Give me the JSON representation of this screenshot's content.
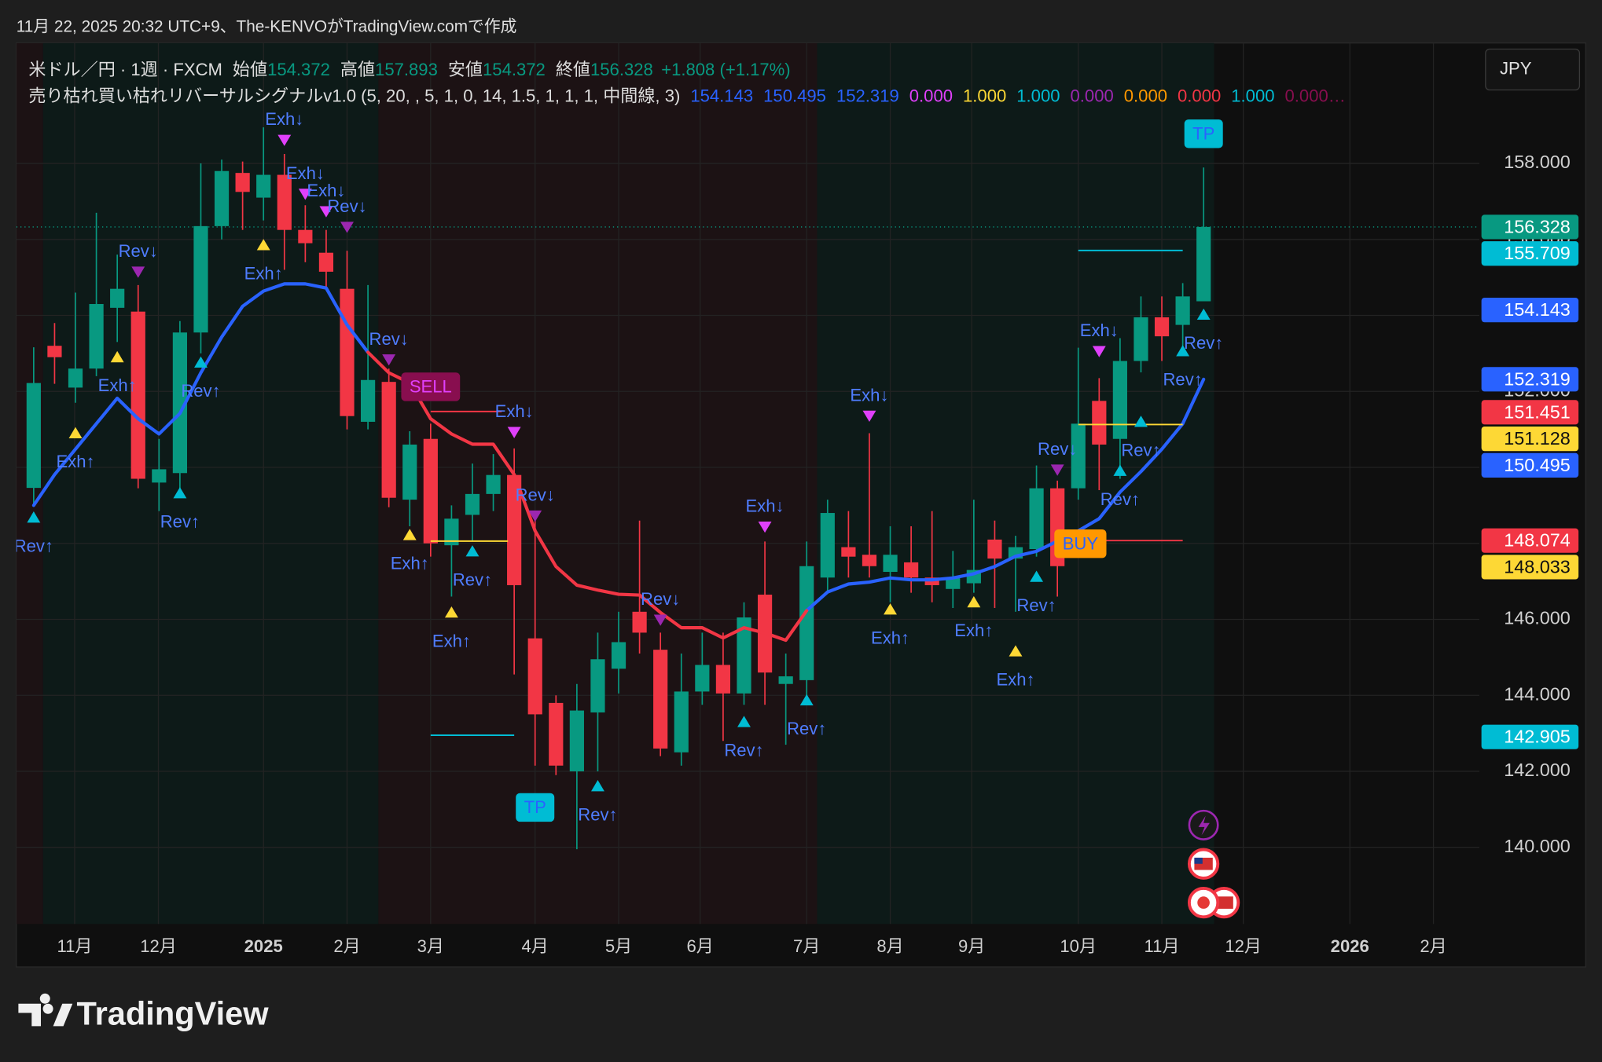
{
  "header": "11月 22, 2025 20:32 UTC+9、The-KENVOがTradingView.comで作成",
  "logo": "TradingView",
  "currency_button": "JPY",
  "chart_data": {
    "type": "candlestick",
    "symbol": "米ドル／円 · 1週 · FXCM",
    "ohlc_legend": [
      {
        "label": "始値",
        "value": 154.372
      },
      {
        "label": "高値",
        "value": 157.893
      },
      {
        "label": "安値",
        "value": 154.372
      },
      {
        "label": "終値",
        "value": 156.328
      }
    ],
    "change": "+1.808 (+1.17%)",
    "indicator": {
      "name": "売り枯れ買い枯れリバーサルシグナルv1.0 (5, 20, , 5, 1, 0, 14, 1.5, 1, 1, 1, 中間線, 3)",
      "values": [
        {
          "text": "154.143",
          "color": "#2962ff"
        },
        {
          "text": "150.495",
          "color": "#2962ff"
        },
        {
          "text": "152.319",
          "color": "#2962ff"
        },
        {
          "text": "0.000",
          "color": "#e040fb"
        },
        {
          "text": "1.000",
          "color": "#fdd835"
        },
        {
          "text": "1.000",
          "color": "#00bcd4"
        },
        {
          "text": "0.000",
          "color": "#9c27b0"
        },
        {
          "text": "0.000",
          "color": "#ff9800"
        },
        {
          "text": "0.000",
          "color": "#f23645"
        },
        {
          "text": "1.000",
          "color": "#00bcd4"
        },
        {
          "text": "0.000…",
          "color": "#880e4f"
        }
      ]
    },
    "x": [
      0,
      1,
      2,
      3,
      4,
      5,
      6,
      7,
      8,
      9,
      10,
      11,
      12,
      13,
      14,
      15,
      16,
      17,
      18,
      19,
      20,
      21,
      22,
      23,
      24,
      25,
      26,
      27,
      28,
      29,
      30,
      31,
      32,
      33,
      34,
      35,
      36,
      37,
      38,
      39,
      40,
      41,
      42,
      43,
      44,
      45,
      46,
      47,
      48,
      49,
      50,
      51,
      52,
      53,
      54,
      55,
      56
    ],
    "open": [
      149.46,
      153.2,
      152.1,
      152.6,
      154.2,
      154.1,
      149.6,
      149.85,
      153.55,
      156.35,
      157.75,
      157.1,
      157.7,
      156.25,
      155.65,
      154.7,
      151.2,
      152.25,
      149.15,
      150.75,
      147.95,
      148.75,
      149.3,
      149.8,
      145.5,
      143.8,
      142.0,
      143.55,
      144.7,
      146.2,
      145.2,
      142.5,
      144.1,
      144.8,
      144.05,
      146.65,
      144.3,
      144.4,
      147.1,
      147.9,
      147.7,
      147.25,
      147.5,
      147.1,
      146.8,
      146.95,
      148.1,
      147.6,
      147.85,
      149.45,
      149.45,
      151.75,
      150.75,
      152.8,
      153.95,
      153.75,
      154.372
    ],
    "high": [
      153.16,
      153.8,
      154.6,
      156.7,
      155.6,
      154.8,
      150.75,
      153.85,
      158.0,
      158.1,
      158.05,
      158.95,
      158.25,
      156.9,
      156.25,
      155.7,
      154.8,
      152.6,
      150.95,
      151.15,
      149.0,
      150.1,
      150.35,
      150.5,
      148.85,
      144.0,
      144.3,
      145.65,
      146.2,
      148.6,
      145.65,
      145.1,
      145.65,
      145.65,
      146.45,
      148.05,
      145.1,
      148.05,
      149.15,
      148.85,
      150.9,
      148.45,
      148.45,
      148.85,
      147.8,
      149.15,
      148.6,
      148.2,
      150.05,
      149.65,
      153.15,
      152.35,
      153.4,
      154.5,
      154.5,
      154.85,
      157.893
    ],
    "low": [
      149.0,
      152.2,
      151.7,
      152.4,
      153.3,
      149.45,
      148.85,
      149.4,
      153.0,
      156.0,
      156.25,
      156.5,
      155.2,
      155.4,
      154.7,
      151.0,
      151.0,
      148.95,
      148.45,
      147.65,
      146.6,
      148.05,
      148.85,
      144.55,
      142.15,
      141.9,
      139.95,
      142.0,
      144.05,
      145.1,
      142.4,
      142.15,
      143.75,
      142.8,
      143.75,
      143.75,
      142.7,
      143.9,
      146.7,
      147.1,
      147.1,
      146.45,
      146.7,
      146.45,
      146.3,
      146.7,
      146.3,
      146.2,
      147.65,
      146.6,
      149.15,
      149.4,
      149.7,
      152.5,
      152.8,
      152.95,
      154.372
    ],
    "close": [
      152.22,
      152.9,
      152.6,
      154.3,
      154.7,
      149.7,
      149.95,
      153.55,
      156.35,
      157.8,
      157.25,
      157.7,
      156.25,
      155.9,
      155.15,
      151.35,
      152.3,
      149.2,
      150.6,
      148.0,
      148.65,
      149.3,
      149.8,
      146.9,
      143.5,
      142.15,
      143.6,
      144.95,
      145.4,
      145.65,
      142.6,
      144.1,
      144.8,
      144.05,
      146.05,
      144.6,
      144.5,
      147.4,
      148.8,
      147.65,
      147.4,
      147.7,
      147.1,
      146.9,
      147.1,
      147.3,
      147.6,
      147.9,
      149.45,
      147.4,
      151.15,
      150.6,
      152.8,
      153.95,
      153.45,
      154.5,
      156.328
    ],
    "up_color": "#089981",
    "down_color": "#f23645",
    "series": [
      {
        "color": "#2962ff",
        "values": [
          149.0,
          149.81,
          150.48,
          151.15,
          151.82,
          151.28,
          150.88,
          151.42,
          152.49,
          153.43,
          154.24,
          154.64,
          154.83,
          154.83,
          154.72,
          153.75,
          153.03,
          null,
          null,
          null,
          null,
          null,
          null,
          null,
          null,
          null,
          null,
          null,
          null,
          null,
          null,
          null,
          null,
          null,
          null,
          null,
          null,
          146.23,
          146.72,
          146.93,
          146.98,
          147.09,
          147.04,
          147.04,
          147.09,
          147.2,
          147.39,
          147.66,
          147.79,
          148.06,
          148.33,
          148.65,
          149.35,
          149.89,
          150.48,
          151.15,
          152.319
        ]
      },
      {
        "color": "#f23645",
        "values": [
          null,
          null,
          null,
          null,
          null,
          null,
          null,
          null,
          null,
          null,
          null,
          null,
          null,
          null,
          null,
          null,
          153.03,
          152.49,
          152.22,
          151.28,
          150.88,
          150.61,
          150.61,
          149.81,
          148.33,
          147.39,
          146.9,
          146.77,
          146.66,
          146.64,
          146.18,
          145.78,
          145.78,
          145.51,
          145.78,
          145.64,
          145.45,
          146.23,
          null,
          null,
          null,
          null,
          null,
          null,
          null,
          null,
          null,
          null,
          null,
          null,
          null,
          null,
          null,
          null,
          null,
          null,
          null
        ]
      }
    ],
    "xlim": [
      -0.83,
      69.2
    ],
    "xticks": [
      {
        "value": 1.96,
        "label": "11月"
      },
      {
        "value": 5.97,
        "label": "12月"
      },
      {
        "value": 11.0,
        "label": "2025"
      },
      {
        "value": 15.0,
        "label": "2月"
      },
      {
        "value": 19.0,
        "label": "3月"
      },
      {
        "value": 24.0,
        "label": "4月"
      },
      {
        "value": 28.0,
        "label": "5月"
      },
      {
        "value": 31.9,
        "label": "6月"
      },
      {
        "value": 37.0,
        "label": "7月"
      },
      {
        "value": 41.0,
        "label": "8月"
      },
      {
        "value": 44.9,
        "label": "9月"
      },
      {
        "value": 50.0,
        "label": "10月"
      },
      {
        "value": 54.0,
        "label": "11月"
      },
      {
        "value": 57.9,
        "label": "12月"
      },
      {
        "value": 63.0,
        "label": "2026"
      },
      {
        "value": 67.0,
        "label": "2月"
      }
    ],
    "ylim": [
      137.98,
      161.17
    ],
    "yticks": [
      {
        "value": 140,
        "label": "140.000"
      },
      {
        "value": 142,
        "label": "142.000"
      },
      {
        "value": 144,
        "label": "144.000"
      },
      {
        "value": 146,
        "label": "146.000"
      },
      {
        "value": 148,
        "label": "148.000"
      },
      {
        "value": 150,
        "label": "150.000"
      },
      {
        "value": 152,
        "label": "152.000"
      },
      {
        "value": 154,
        "label": "154.000"
      },
      {
        "value": 156,
        "label": "156.000"
      },
      {
        "value": 158,
        "label": "158.000"
      }
    ],
    "grid": true,
    "regimes": [
      {
        "from": -0.83,
        "to": 0.45,
        "color": "#1c1214"
      },
      {
        "from": 0.45,
        "to": 16.5,
        "color": "#0d1a18"
      },
      {
        "from": 16.5,
        "to": 37.5,
        "color": "#1c1214"
      },
      {
        "from": 37.5,
        "to": 56.5,
        "color": "#0d1a18"
      }
    ],
    "levels": [
      {
        "value": 155.709,
        "from": 50,
        "to": 55,
        "color": "#00bcd4"
      },
      {
        "value": 151.47,
        "from": 19,
        "to": 22.4,
        "color": "#f23645"
      },
      {
        "value": 148.06,
        "from": 19,
        "to": 22.7,
        "color": "#fdd835"
      },
      {
        "value": 142.95,
        "from": 19,
        "to": 23,
        "color": "#00bcd4"
      },
      {
        "value": 151.128,
        "from": 50,
        "to": 55,
        "color": "#fdd835"
      },
      {
        "value": 148.074,
        "from": 50,
        "to": 55,
        "color": "#f23645"
      }
    ],
    "signal_text_color": "#4f7dff",
    "signals": [
      {
        "x": 0,
        "y": 148.68,
        "label": "Rev↑",
        "color": "#00bcd4"
      },
      {
        "x": 2,
        "y": 150.9,
        "label": "Exh↑",
        "color": "#fdd835"
      },
      {
        "x": 4,
        "y": 152.9,
        "label": "Exh↑",
        "color": "#fdd835"
      },
      {
        "x": 5,
        "y": 155.15,
        "label": "Rev↓",
        "color": "#9c27b0"
      },
      {
        "x": 7,
        "y": 149.32,
        "label": "Rev↑",
        "color": "#00bcd4"
      },
      {
        "x": 8,
        "y": 152.76,
        "label": "Rev↑",
        "color": "#00bcd4"
      },
      {
        "x": 11,
        "y": 155.85,
        "label": "Exh↑",
        "color": "#fdd835"
      },
      {
        "x": 12,
        "y": 158.62,
        "label": "Exh↓",
        "color": "#e040fb"
      },
      {
        "x": 13,
        "y": 157.2,
        "label": "Exh↓",
        "color": "#e040fb"
      },
      {
        "x": 14,
        "y": 156.74,
        "label": "Exh↓",
        "color": "#e040fb"
      },
      {
        "x": 15,
        "y": 156.33,
        "label": "Rev↓",
        "color": "#9c27b0"
      },
      {
        "x": 17,
        "y": 152.84,
        "label": "Rev↓",
        "color": "#9c27b0"
      },
      {
        "x": 18,
        "y": 148.22,
        "label": "Exh↑",
        "color": "#fdd835"
      },
      {
        "x": 20,
        "y": 146.18,
        "label": "Exh↑",
        "color": "#fdd835"
      },
      {
        "x": 21,
        "y": 147.79,
        "label": "Rev↑",
        "color": "#00bcd4"
      },
      {
        "x": 23,
        "y": 150.93,
        "label": "Exh↓",
        "color": "#e040fb"
      },
      {
        "x": 24,
        "y": 148.73,
        "label": "Rev↓",
        "color": "#9c27b0"
      },
      {
        "x": 27,
        "y": 141.61,
        "label": "Rev↑",
        "color": "#00bcd4"
      },
      {
        "x": 30,
        "y": 145.99,
        "label": "Rev↓",
        "color": "#9c27b0"
      },
      {
        "x": 34,
        "y": 143.3,
        "label": "Rev↑",
        "color": "#00bcd4"
      },
      {
        "x": 35,
        "y": 148.44,
        "label": "Exh↓",
        "color": "#e040fb"
      },
      {
        "x": 37,
        "y": 143.87,
        "label": "Rev↑",
        "color": "#00bcd4"
      },
      {
        "x": 40,
        "y": 151.36,
        "label": "Exh↓",
        "color": "#e040fb"
      },
      {
        "x": 41,
        "y": 146.26,
        "label": "Exh↑",
        "color": "#fdd835"
      },
      {
        "x": 45,
        "y": 146.45,
        "label": "Exh↑",
        "color": "#fdd835"
      },
      {
        "x": 47,
        "y": 145.16,
        "label": "Exh↑",
        "color": "#fdd835"
      },
      {
        "x": 48,
        "y": 147.12,
        "label": "Rev↑",
        "color": "#00bcd4"
      },
      {
        "x": 49,
        "y": 149.94,
        "label": "Rev↓",
        "color": "#9c27b0"
      },
      {
        "x": 51,
        "y": 153.06,
        "label": "Exh↓",
        "color": "#e040fb"
      },
      {
        "x": 52,
        "y": 149.91,
        "label": "Rev↑",
        "color": "#00bcd4"
      },
      {
        "x": 53,
        "y": 151.2,
        "label": "Rev↑",
        "color": "#00bcd4"
      },
      {
        "x": 55,
        "y": 153.06,
        "label": "Rev↑",
        "color": "#00bcd4"
      },
      {
        "x": 56,
        "y": 154.02,
        "label": "Rev↑",
        "color": "#00bcd4"
      }
    ],
    "tags": [
      {
        "text": "SELL",
        "x": 19,
        "y": 152.12,
        "color": "#880e4f",
        "text_color": "#e040fb"
      },
      {
        "text": "BUY",
        "x": 50.1,
        "y": 147.99,
        "color": "#ff9800",
        "text_color": "#2962ff"
      },
      {
        "text": "TP",
        "x": 56,
        "y": 158.78,
        "color": "#00bcd4",
        "text_color": "#2962ff"
      },
      {
        "text": "TP",
        "x": 24,
        "y": 141.05,
        "color": "#00bcd4",
        "text_color": "#2962ff"
      }
    ],
    "price_labels": [
      {
        "value": 156.328,
        "color": "#089981"
      },
      {
        "value": 155.709,
        "color": "#00bcd4"
      },
      {
        "value": 154.143,
        "color": "#2962ff"
      },
      {
        "value": 152.319,
        "color": "#2962ff"
      },
      {
        "value": 151.451,
        "color": "#f23645"
      },
      {
        "value": 151.128,
        "color": "#fdd835"
      },
      {
        "value": 150.495,
        "color": "#2962ff"
      },
      {
        "value": 148.074,
        "color": "#f23645"
      },
      {
        "value": 148.033,
        "color": "#fdd835"
      },
      {
        "value": 142.905,
        "color": "#00bcd4"
      }
    ]
  }
}
